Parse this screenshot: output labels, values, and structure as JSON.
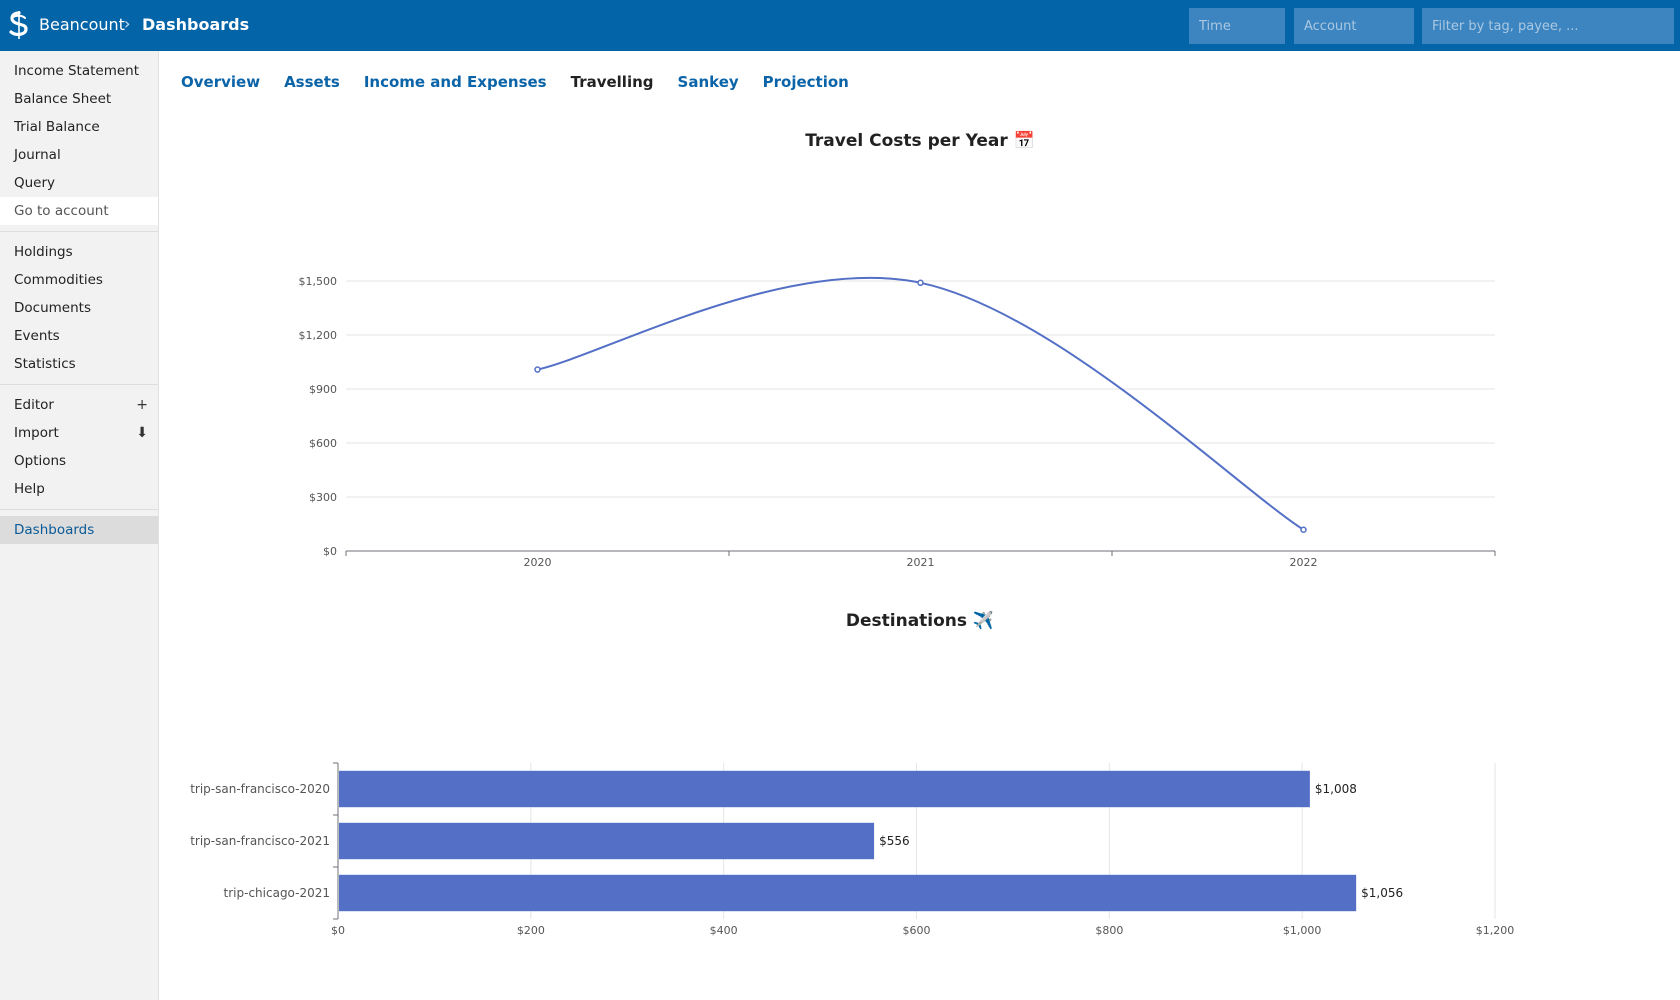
{
  "header": {
    "brand": "Beancount",
    "breadcrumb_sep": "›",
    "breadcrumb_current": "Dashboards",
    "time_placeholder": "Time",
    "account_placeholder": "Account",
    "filter_placeholder": "Filter by tag, payee, ..."
  },
  "sidebar": {
    "group1": [
      "Income Statement",
      "Balance Sheet",
      "Trial Balance",
      "Journal",
      "Query"
    ],
    "goto_account": "Go to account",
    "group2": [
      "Holdings",
      "Commodities",
      "Documents",
      "Events",
      "Statistics"
    ],
    "group3": [
      {
        "label": "Editor",
        "icon": "+"
      },
      {
        "label": "Import",
        "icon": "⬇"
      },
      {
        "label": "Options",
        "icon": ""
      },
      {
        "label": "Help",
        "icon": ""
      }
    ],
    "active_item": "Dashboards"
  },
  "tabs": [
    {
      "label": "Overview",
      "selected": false
    },
    {
      "label": "Assets",
      "selected": false
    },
    {
      "label": "Income and Expenses",
      "selected": false
    },
    {
      "label": "Travelling",
      "selected": true
    },
    {
      "label": "Sankey",
      "selected": false
    },
    {
      "label": "Projection",
      "selected": false
    }
  ],
  "colors": {
    "header": "#0364a8",
    "link": "#0b64a8",
    "series": "#5470c6"
  },
  "chart_data": [
    {
      "type": "line",
      "title": "Travel Costs per Year 📅",
      "x": [
        "2020",
        "2021",
        "2022"
      ],
      "values": [
        1008,
        1490,
        118
      ],
      "ylim": [
        0,
        1500
      ],
      "yticks": [
        0,
        300,
        600,
        900,
        1200,
        1500
      ],
      "ytick_labels": [
        "$0",
        "$300",
        "$600",
        "$900",
        "$1,200",
        "$1,500"
      ],
      "smooth": true,
      "grid": true
    },
    {
      "type": "bar",
      "orientation": "horizontal",
      "title": "Destinations ✈️",
      "categories": [
        "trip-san-francisco-2020",
        "trip-san-francisco-2021",
        "trip-chicago-2021"
      ],
      "values": [
        1008,
        556,
        1056
      ],
      "value_labels": [
        "$1,008",
        "$556",
        "$1,056"
      ],
      "xlim": [
        0,
        1200
      ],
      "xticks": [
        0,
        200,
        400,
        600,
        800,
        1000,
        1200
      ],
      "xtick_labels": [
        "$0",
        "$200",
        "$400",
        "$600",
        "$800",
        "$1,000",
        "$1,200"
      ],
      "grid": true
    }
  ]
}
